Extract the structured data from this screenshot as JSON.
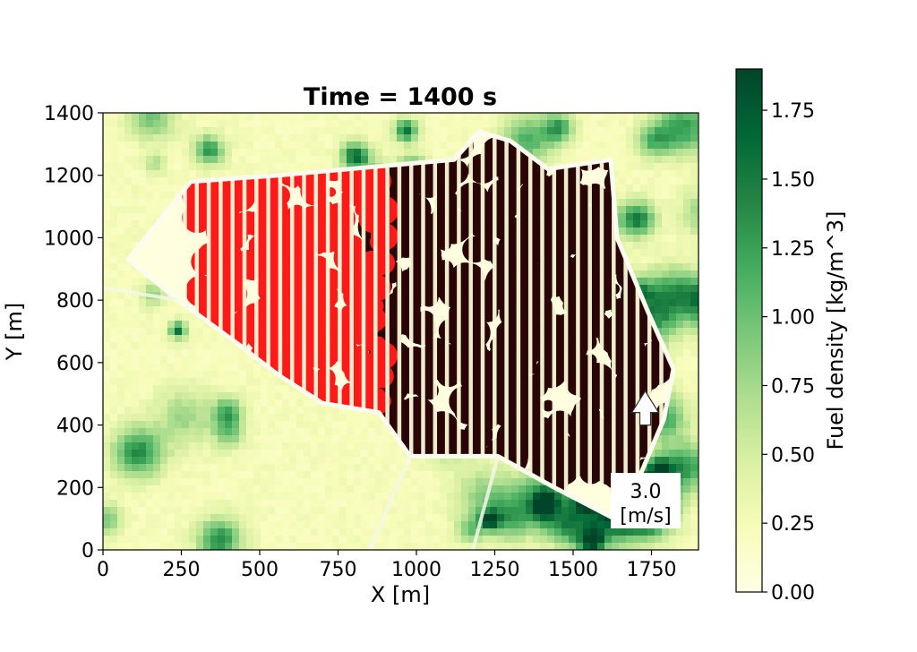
{
  "chart_data": {
    "type": "heatmap",
    "title": "Time = 1400 s",
    "xlabel": "X [m]",
    "ylabel": "Y [m]",
    "xlim": [
      0,
      1900
    ],
    "ylim": [
      0,
      1400
    ],
    "x_ticks": [
      0,
      250,
      500,
      750,
      1000,
      1250,
      1500,
      1750
    ],
    "y_ticks": [
      0,
      200,
      400,
      600,
      800,
      1000,
      1200,
      1400
    ],
    "x_tick_labels": [
      "0",
      "250",
      "500",
      "750",
      "1000",
      "1250",
      "1500",
      "1750"
    ],
    "y_tick_labels": [
      "0",
      "200",
      "400",
      "600",
      "800",
      "1000",
      "1200",
      "1400"
    ],
    "grid": false,
    "colorbar": {
      "label": "Fuel density [kg/m^3]",
      "range": [
        0,
        1.9
      ],
      "ticks": [
        0,
        0.25,
        0.5,
        0.75,
        1.0,
        1.25,
        1.5,
        1.75
      ],
      "tick_labels": [
        "0.00",
        "0.25",
        "0.50",
        "0.75",
        "1.00",
        "1.25",
        "1.50",
        "1.75"
      ],
      "colors": [
        "#ffffe5",
        "#f7fcb9",
        "#d9f0a3",
        "#addd8e",
        "#78c679",
        "#41ab5d",
        "#238443",
        "#006837",
        "#004529"
      ]
    },
    "burn_unit_boundary": [
      [
        80,
        930
      ],
      [
        280,
        1180
      ],
      [
        560,
        1200
      ],
      [
        1120,
        1250
      ],
      [
        1200,
        1340
      ],
      [
        1300,
        1310
      ],
      [
        1420,
        1220
      ],
      [
        1620,
        1250
      ],
      [
        1640,
        1000
      ],
      [
        1740,
        760
      ],
      [
        1820,
        580
      ],
      [
        1790,
        420
      ],
      [
        1710,
        230
      ],
      [
        1670,
        80
      ],
      [
        1440,
        200
      ],
      [
        1260,
        300
      ],
      [
        980,
        300
      ],
      [
        930,
        370
      ],
      [
        880,
        440
      ],
      [
        700,
        470
      ],
      [
        560,
        560
      ],
      [
        430,
        660
      ],
      [
        240,
        800
      ]
    ],
    "burned_region": {
      "label": "burned",
      "color": "#2a0505",
      "x_range": [
        860,
        1800
      ],
      "y_range": [
        230,
        1330
      ]
    },
    "active_fire_region": {
      "label": "active fire",
      "color": "#ff1a1a",
      "x_range": [
        300,
        900
      ],
      "y_range": [
        430,
        1220
      ]
    },
    "wind_vector": {
      "speed_label": "3.0",
      "units_label": "[m/s]",
      "direction": "north",
      "position_xy": [
        1730,
        440
      ]
    }
  }
}
